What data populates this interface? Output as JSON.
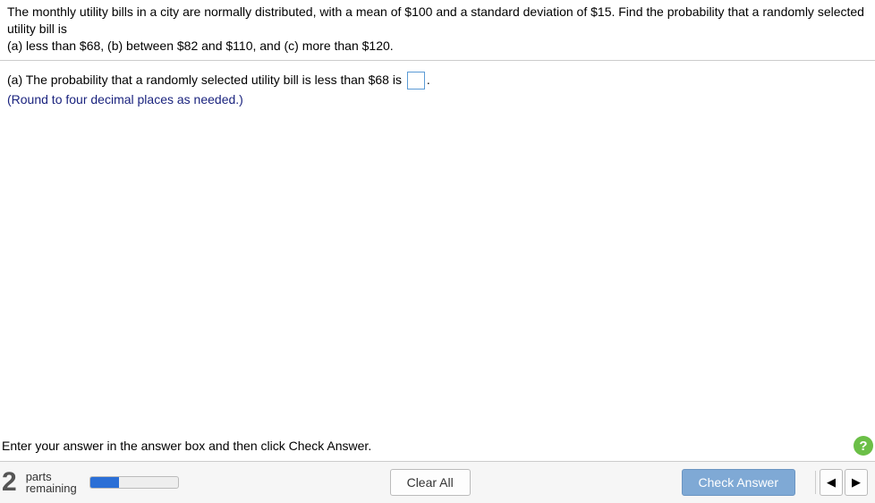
{
  "question": {
    "line1": "The monthly utility bills in a city are normally distributed, with a mean of $100 and a standard deviation of $15. Find the probability that a randomly selected utility bill is",
    "line2": "(a) less than $68, (b) between $82 and $110, and (c) more than $120."
  },
  "answer": {
    "prompt_before": "(a) The probability that a randomly selected utility bill is less than $68 is ",
    "prompt_after": ".",
    "round_hint": "(Round to four decimal places as needed.)",
    "input_value": ""
  },
  "instruction": "Enter your answer in the answer box and then click Check Answer.",
  "help_label": "?",
  "footer": {
    "parts_number": "2",
    "parts_label_top": "parts",
    "parts_label_bottom": "remaining",
    "progress_percent": 33,
    "clear_label": "Clear All",
    "check_label": "Check Answer",
    "prev_glyph": "◀",
    "next_glyph": "▶"
  },
  "colors": {
    "accent": "#5b9bd5",
    "hint": "#1a237e",
    "progress": "#2b6fd6",
    "primary_btn": "#7fa9d5",
    "help": "#6bbf47"
  }
}
